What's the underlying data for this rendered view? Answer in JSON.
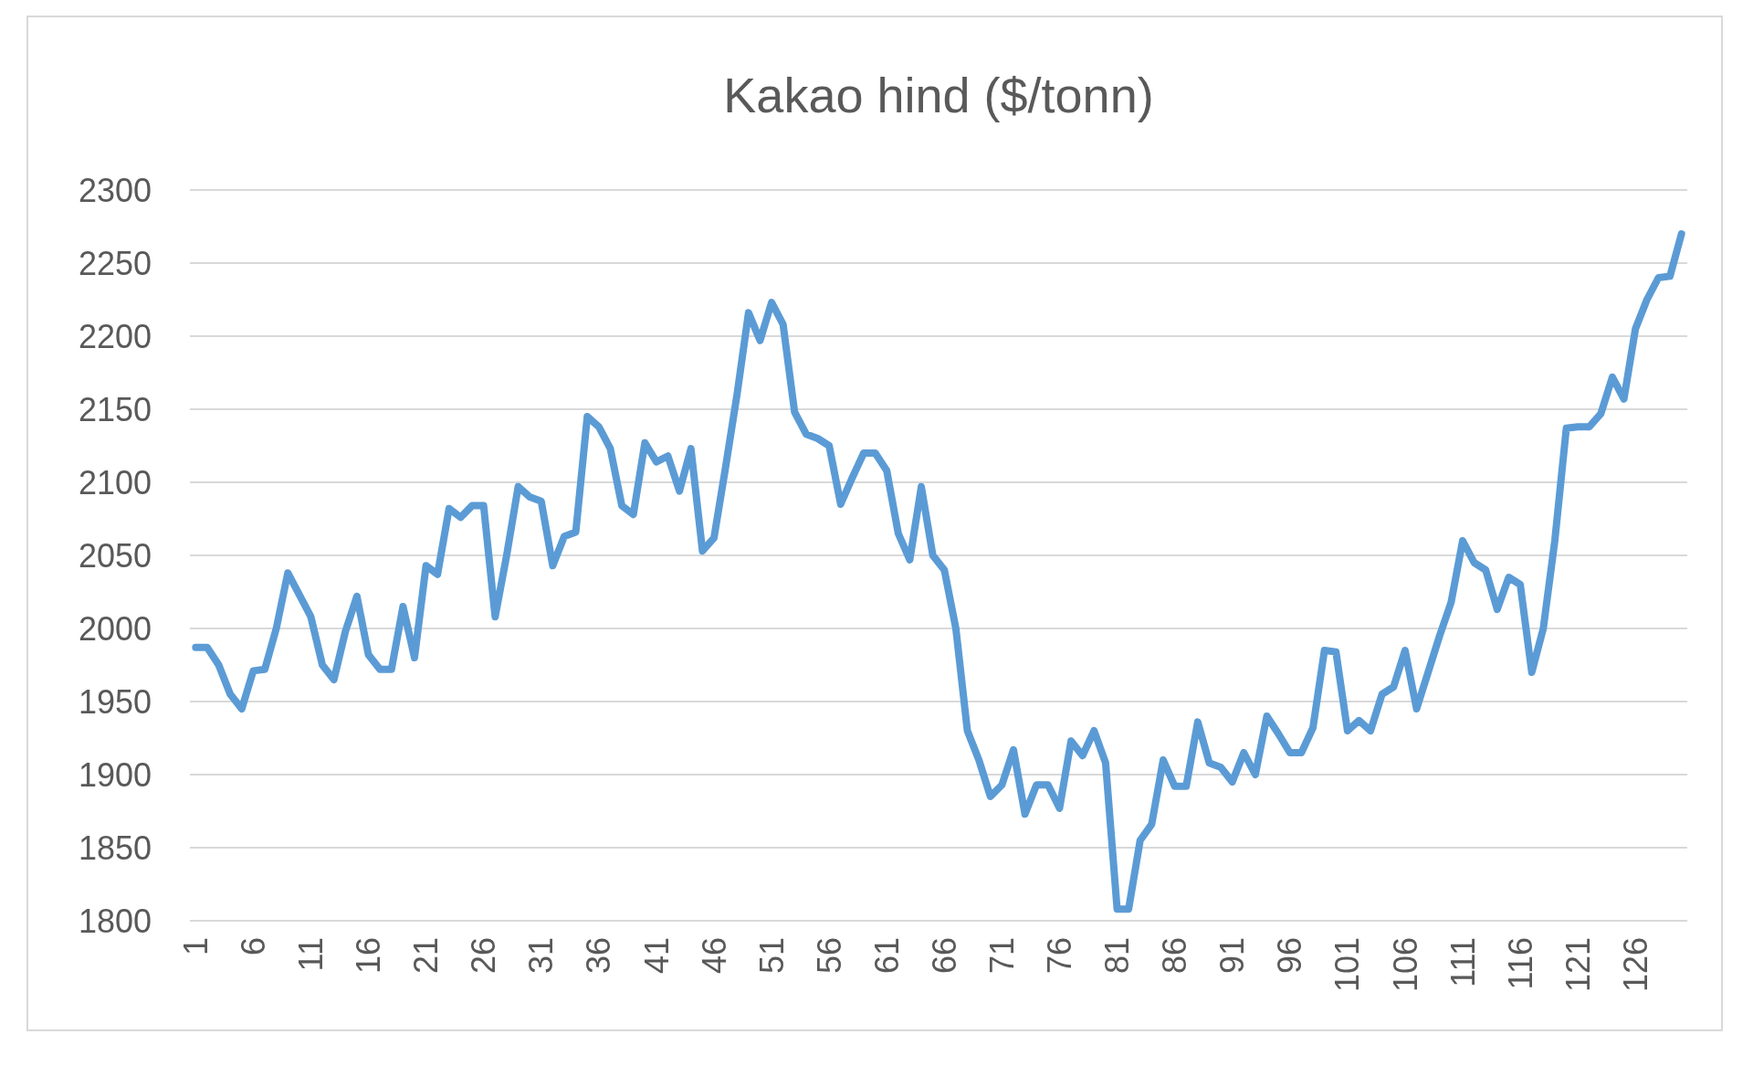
{
  "chart_data": {
    "type": "line",
    "title": "Kakao hind ($/tonn)",
    "categories": [
      "1",
      null,
      null,
      null,
      null,
      "6",
      null,
      null,
      null,
      null,
      "11",
      null,
      null,
      null,
      null,
      "16",
      null,
      null,
      null,
      null,
      "21",
      null,
      null,
      null,
      null,
      "26",
      null,
      null,
      null,
      null,
      "31",
      null,
      null,
      null,
      null,
      "36",
      null,
      null,
      null,
      null,
      "41",
      null,
      null,
      null,
      null,
      "46",
      null,
      null,
      null,
      null,
      "51",
      null,
      null,
      null,
      null,
      "56",
      null,
      null,
      null,
      null,
      "61",
      null,
      null,
      null,
      null,
      "66",
      null,
      null,
      null,
      null,
      "71",
      null,
      null,
      null,
      null,
      "76",
      null,
      null,
      null,
      null,
      "81",
      null,
      null,
      null,
      null,
      "86",
      null,
      null,
      null,
      null,
      "91",
      null,
      null,
      null,
      null,
      "96",
      null,
      null,
      null,
      null,
      "101",
      null,
      null,
      null,
      null,
      "106",
      null,
      null,
      null,
      null,
      "111",
      null,
      null,
      null,
      null,
      "116",
      null,
      null,
      null,
      null,
      "121",
      null,
      null,
      null,
      null,
      "126",
      null,
      null,
      null,
      null
    ],
    "series": [
      {
        "color": "#5b9bd5",
        "values": [
          1987,
          1987,
          1975,
          1955,
          1945,
          1971,
          1972,
          2000,
          2038,
          2023,
          2008,
          1975,
          1965,
          1998,
          2022,
          1982,
          1972,
          1972,
          2015,
          1980,
          2043,
          2037,
          2082,
          2076,
          2084,
          2084,
          2008,
          2050,
          2097,
          2090,
          2087,
          2043,
          2063,
          2066,
          2145,
          2138,
          2123,
          2084,
          2078,
          2127,
          2114,
          2118,
          2094,
          2123,
          2053,
          2062,
          2110,
          2160,
          2216,
          2197,
          2223,
          2208,
          2148,
          2133,
          2130,
          2125,
          2085,
          2103,
          2120,
          2120,
          2108,
          2065,
          2047,
          2097,
          2050,
          2040,
          2000,
          1930,
          1910,
          1885,
          1893,
          1917,
          1873,
          1893,
          1893,
          1877,
          1923,
          1913,
          1930,
          1908,
          1808,
          1808,
          1855,
          1866,
          1910,
          1892,
          1892,
          1936,
          1908,
          1905,
          1895,
          1915,
          1900,
          1940,
          1928,
          1915,
          1915,
          1932,
          1985,
          1984,
          1930,
          1937,
          1930,
          1955,
          1960,
          1985,
          1945,
          1970,
          1995,
          2018,
          2060,
          2045,
          2040,
          2013,
          2035,
          2030,
          1970,
          2000,
          2060,
          2137,
          2138,
          2138,
          2147,
          2172,
          2157,
          2205,
          2225,
          2240,
          2241,
          2270
        ]
      }
    ],
    "ylim": [
      1800,
      2300
    ],
    "yticks": [
      1800,
      1850,
      1900,
      1950,
      2000,
      2050,
      2100,
      2150,
      2200,
      2250,
      2300
    ],
    "grid": "y",
    "marker": "none",
    "line_style": "solid"
  }
}
